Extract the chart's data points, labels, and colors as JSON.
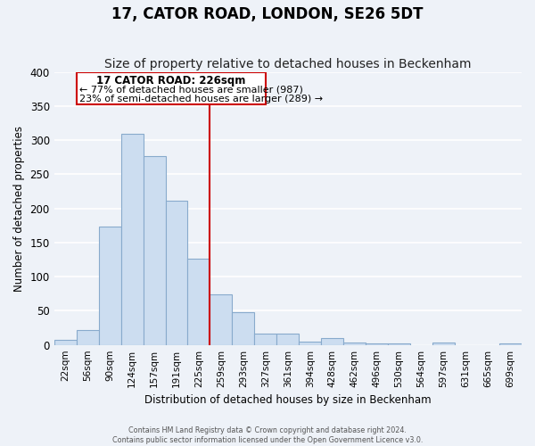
{
  "title": "17, CATOR ROAD, LONDON, SE26 5DT",
  "subtitle": "Size of property relative to detached houses in Beckenham",
  "xlabel": "Distribution of detached houses by size in Beckenham",
  "ylabel": "Number of detached properties",
  "bar_labels": [
    "22sqm",
    "56sqm",
    "90sqm",
    "124sqm",
    "157sqm",
    "191sqm",
    "225sqm",
    "259sqm",
    "293sqm",
    "327sqm",
    "361sqm",
    "394sqm",
    "428sqm",
    "462sqm",
    "496sqm",
    "530sqm",
    "564sqm",
    "597sqm",
    "631sqm",
    "665sqm",
    "699sqm"
  ],
  "bar_heights": [
    8,
    22,
    174,
    309,
    277,
    211,
    127,
    74,
    48,
    16,
    16,
    5,
    10,
    4,
    2,
    2,
    0,
    3,
    0,
    0,
    2
  ],
  "bar_color": "#ccddf0",
  "bar_edge_color": "#88aacc",
  "vline_color": "#cc0000",
  "annotation_title": "17 CATOR ROAD: 226sqm",
  "annotation_line1": "← 77% of detached houses are smaller (987)",
  "annotation_line2": "23% of semi-detached houses are larger (289) →",
  "annotation_box_edge": "#cc0000",
  "ylim": [
    0,
    400
  ],
  "yticks": [
    0,
    50,
    100,
    150,
    200,
    250,
    300,
    350,
    400
  ],
  "footer1": "Contains HM Land Registry data © Crown copyright and database right 2024.",
  "footer2": "Contains public sector information licensed under the Open Government Licence v3.0.",
  "bg_color": "#eef2f8",
  "grid_color": "#ffffff",
  "title_fontsize": 12,
  "subtitle_fontsize": 10
}
